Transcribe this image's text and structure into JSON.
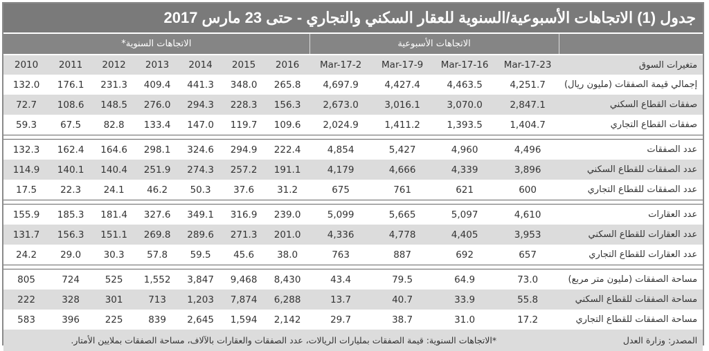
{
  "title": "جدول (1) الاتجاهات الأسبوعية/السنوية للعقار السكني والتجاري - حتى 23 مارس 2017",
  "groups": {
    "weekly": "الاتجاهات الأسبوعية",
    "annual": "الاتجاهات السنوية*"
  },
  "header_label": "متغيرات السوق",
  "columns": [
    "23-Mar-17",
    "16-Mar-17",
    "9-Mar-17",
    "2-Mar-17",
    "2016",
    "2015",
    "2014",
    "2013",
    "2012",
    "2011",
    "2010"
  ],
  "sections": [
    [
      {
        "label": "إجمالي قيمة الصفقات (مليون ريال)",
        "values": [
          "4,251.7",
          "4,463.5",
          "4,427.4",
          "4,697.9",
          "265.8",
          "348.0",
          "441.3",
          "409.4",
          "231.3",
          "176.1",
          "132.0"
        ]
      },
      {
        "label": "صفقات القطاع السكني",
        "values": [
          "2,847.1",
          "3,070.0",
          "3,016.1",
          "2,673.0",
          "156.3",
          "228.3",
          "294.3",
          "276.0",
          "148.5",
          "108.6",
          "72.7"
        ]
      },
      {
        "label": "صفقات القطاع التجاري",
        "values": [
          "1,404.7",
          "1,393.5",
          "1,411.2",
          "2,024.9",
          "109.6",
          "119.7",
          "147.0",
          "133.4",
          "82.8",
          "67.5",
          "59.3"
        ]
      }
    ],
    [
      {
        "label": "عدد الصفقات",
        "values": [
          "4,496",
          "4,960",
          "5,427",
          "4,854",
          "222.4",
          "294.9",
          "324.6",
          "298.1",
          "164.6",
          "162.4",
          "132.3"
        ]
      },
      {
        "label": "عدد الصفقات للقطاع السكني",
        "values": [
          "3,896",
          "4,339",
          "4,666",
          "4,179",
          "191.1",
          "257.2",
          "274.3",
          "251.9",
          "140.4",
          "140.1",
          "114.9"
        ]
      },
      {
        "label": "عدد الصفقات للقطاع التجاري",
        "values": [
          "600",
          "621",
          "761",
          "675",
          "31.2",
          "37.6",
          "50.3",
          "46.2",
          "24.1",
          "22.3",
          "17.5"
        ]
      }
    ],
    [
      {
        "label": "عدد العقارات",
        "values": [
          "4,610",
          "5,097",
          "5,665",
          "5,099",
          "239.0",
          "316.9",
          "349.1",
          "327.6",
          "181.4",
          "185.3",
          "155.9"
        ]
      },
      {
        "label": "عدد العقارات للقطاع السكني",
        "values": [
          "3,953",
          "4,405",
          "4,778",
          "4,336",
          "201.0",
          "271.3",
          "289.6",
          "269.8",
          "151.1",
          "156.3",
          "131.7"
        ]
      },
      {
        "label": "عدد العقارات للقطاع التجاري",
        "values": [
          "657",
          "692",
          "887",
          "763",
          "38.0",
          "45.6",
          "59.5",
          "57.8",
          "30.3",
          "29.0",
          "24.2"
        ]
      }
    ],
    [
      {
        "label": "مساحة الصفقات (مليون متر مربع)",
        "values": [
          "73.0",
          "64.9",
          "79.5",
          "43.4",
          "8,430",
          "9,468",
          "3,847",
          "1,552",
          "525",
          "724",
          "805"
        ]
      },
      {
        "label": "مساحة الصفقات للقطاع السكني",
        "values": [
          "55.8",
          "33.9",
          "40.7",
          "13.7",
          "6,288",
          "7,874",
          "1,203",
          "713",
          "301",
          "328",
          "222"
        ]
      },
      {
        "label": "مساحة الصفقات للقطاع التجاري",
        "values": [
          "17.2",
          "31.0",
          "38.7",
          "29.7",
          "2,142",
          "1,594",
          "2,645",
          "839",
          "225",
          "396",
          "583"
        ]
      }
    ]
  ],
  "footer": {
    "source": "المصدر: وزارة العدل",
    "note": "*الاتجاهات السنوية: قيمة الصفقات بمليارات الريالات، عدد الصفقات والعقارات بالآلاف، مساحة الصفقات بملايين الأمتار."
  },
  "colors": {
    "title_bg": "#7a7a7a",
    "group_bg": "#858585",
    "stripe": "#dcdcdc"
  }
}
